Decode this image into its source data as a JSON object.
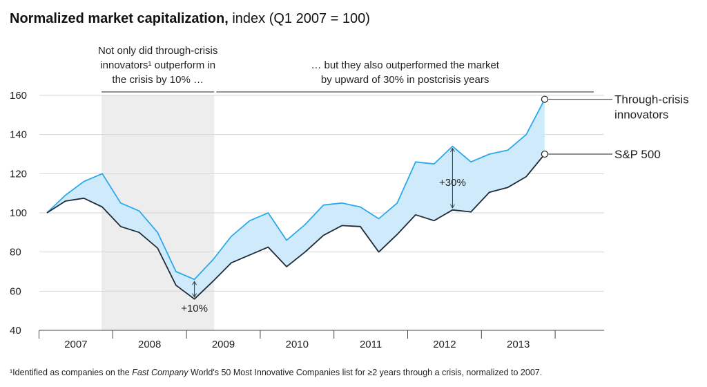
{
  "title": {
    "bold": "Normalized market capitalization,",
    "rest": " index (Q1 2007 = 100)"
  },
  "annotations": {
    "crisis_lines": [
      "Not only did through-crisis",
      "innovators¹ outperform in",
      "the crisis by 10% …"
    ],
    "post_lines": [
      "… but they also outperformed the market",
      "by upward of 30% in postcrisis years"
    ],
    "gap_crisis": "+10%",
    "gap_post": "+30%"
  },
  "footnote": {
    "a": "¹Identified as companies on the ",
    "b": "Fast Company",
    "c": " World's 50 Most Innovative Companies list for ≥2 years through a crisis, normalized to 2007."
  },
  "colors": {
    "innovators": "#29A9E9",
    "sp500": "#1F2B36",
    "fill": "#CFEBFB",
    "crisis_band": "#EDEDED",
    "grid": "#D4D4D4"
  },
  "chart_data": {
    "type": "line",
    "title": "Normalized market capitalization, index (Q1 2007 = 100)",
    "x_unit": "quarter",
    "x": [
      "2007-Q1",
      "2007-Q2",
      "2007-Q3",
      "2007-Q4",
      "2008-Q1",
      "2008-Q2",
      "2008-Q3",
      "2008-Q4",
      "2009-Q1",
      "2009-Q2",
      "2009-Q3",
      "2009-Q4",
      "2010-Q1",
      "2010-Q2",
      "2010-Q3",
      "2010-Q4",
      "2011-Q1",
      "2011-Q2",
      "2011-Q3",
      "2011-Q4",
      "2012-Q1",
      "2012-Q2",
      "2012-Q3",
      "2012-Q4",
      "2013-Q1",
      "2013-Q2",
      "2013-Q3",
      "2013-Q4"
    ],
    "series": [
      {
        "name": "Through-crisis innovators",
        "values": [
          100,
          109,
          116,
          120,
          105,
          101,
          90,
          70,
          66,
          76,
          88,
          96,
          100,
          86,
          94,
          104,
          105,
          103,
          97,
          105,
          126,
          125,
          134,
          126,
          130,
          132,
          140,
          158
        ]
      },
      {
        "name": "S&P 500",
        "values": [
          100,
          106,
          107.5,
          103,
          93,
          90,
          82,
          63,
          56,
          65,
          74.5,
          78.5,
          82.5,
          72.5,
          80,
          88.5,
          93.5,
          93,
          80,
          89,
          99,
          96,
          101.5,
          100.5,
          110.5,
          113,
          118.5,
          130
        ]
      }
    ],
    "years": [
      "2007",
      "2008",
      "2009",
      "2010",
      "2011",
      "2012",
      "2013"
    ],
    "ylim": [
      40,
      160
    ],
    "yticks": [
      40,
      60,
      80,
      100,
      120,
      140,
      160
    ],
    "crisis_period": [
      "2007-Q4",
      "2009-Q2"
    ],
    "grid": true,
    "legend": "right, labels at line ends"
  }
}
